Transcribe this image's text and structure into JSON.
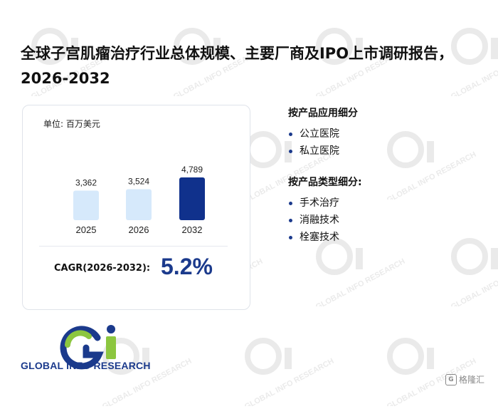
{
  "title": "全球子宫肌瘤治疗行业总体规模、主要厂商及IPO上市调研报告，2026-2032",
  "unit_label": "单位: 百万美元",
  "chart_data": {
    "type": "bar",
    "categories": [
      "2025",
      "2026",
      "2032"
    ],
    "values": [
      3362,
      3524,
      4789
    ],
    "value_labels": [
      "3,362",
      "3,524",
      "4,789"
    ],
    "bar_colors": [
      "#d6e9fb",
      "#d6e9fb",
      "#10318c"
    ],
    "title": "",
    "xlabel": "",
    "ylabel": "",
    "grid": false,
    "legend": "none"
  },
  "cagr": {
    "label": "CAGR(2026-2032):",
    "value": "5.2%"
  },
  "segments": [
    {
      "heading": "按产品应用细分",
      "items": [
        "公立医院",
        "私立医院"
      ]
    },
    {
      "heading": "按产品类型细分:",
      "items": [
        "手术治疗",
        "消融技术",
        "栓塞技术"
      ]
    }
  ],
  "logo": {
    "text": "GLOBAL INFO RESEARCH",
    "mark": "Gi",
    "colors": {
      "blue": "#1b3a8c",
      "green": "#8cc63f"
    }
  },
  "watermark": {
    "mark": "Gi",
    "text": "GLOBAL INFO RESEARCH"
  },
  "corner_mark": {
    "text": "格隆汇"
  }
}
